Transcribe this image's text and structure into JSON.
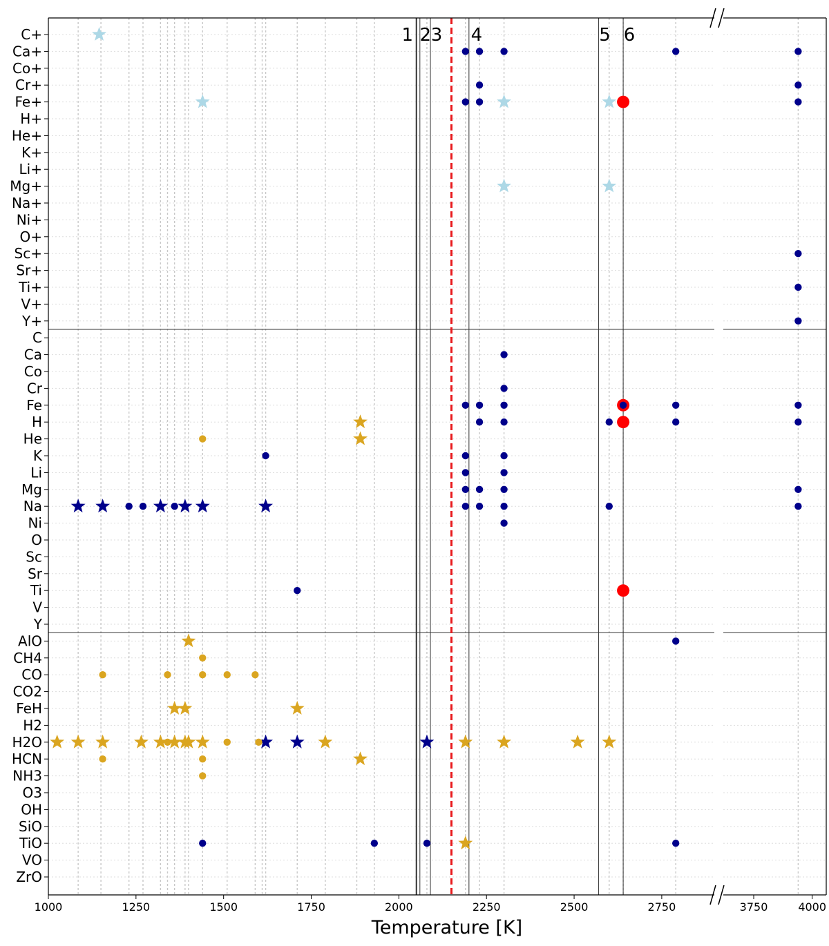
{
  "chart_data": {
    "type": "scatter",
    "title": "",
    "xlabel": "Temperature [K]",
    "ylabel": "",
    "x_segments": [
      {
        "range": [
          1000,
          2900
        ],
        "ticks": [
          1000,
          1250,
          1500,
          1750,
          2000,
          2250,
          2500,
          2750
        ]
      },
      {
        "range": [
          3620,
          4060
        ],
        "ticks": [
          3750,
          4000
        ]
      }
    ],
    "categories": [
      "C+",
      "Ca+",
      "Co+",
      "Cr+",
      "Fe+",
      "H+",
      "He+",
      "K+",
      "Li+",
      "Mg+",
      "Na+",
      "Ni+",
      "O+",
      "Sc+",
      "Sr+",
      "Ti+",
      "V+",
      "Y+",
      "C",
      "Ca",
      "Co",
      "Cr",
      "Fe",
      "H",
      "He",
      "K",
      "Li",
      "Mg",
      "Na",
      "Ni",
      "O",
      "Sc",
      "Sr",
      "Ti",
      "V",
      "Y",
      "AlO",
      "CH4",
      "CO",
      "CO2",
      "FeH",
      "H2",
      "H2O",
      "HCN",
      "NH3",
      "O3",
      "OH",
      "SiO",
      "TiO",
      "VO",
      "ZrO"
    ],
    "group_separators_after": [
      "Y+",
      "Y"
    ],
    "reference_lines": [
      {
        "label": "1",
        "x": 2050
      },
      {
        "label": "2",
        "x": 2060
      },
      {
        "label": "3",
        "x": 2090
      },
      {
        "label": "4",
        "x": 2200
      },
      {
        "label": "5",
        "x": 2570
      },
      {
        "label": "6",
        "x": 2640
      }
    ],
    "threshold_line": {
      "x": 2150,
      "color": "#e8191c",
      "style": "dashed"
    },
    "grid_x_dotted": [
      1085,
      1150,
      1230,
      1270,
      1320,
      1340,
      1360,
      1390,
      1400,
      1440,
      1510,
      1590,
      1610,
      1620,
      1710,
      1790,
      1880,
      1930,
      2080,
      2190,
      2230,
      2300,
      2600,
      2640,
      2790
    ],
    "colors": {
      "dark_blue": "#00008b",
      "light_blue": "#add8e6",
      "gold": "#daa520",
      "red": "#ff0000"
    },
    "series": [
      {
        "name": "dark-blue-dots",
        "marker": "circle",
        "color": "#00008b",
        "points": [
          [
            "Ca+",
            2190
          ],
          [
            "Ca+",
            2230
          ],
          [
            "Ca+",
            2300
          ],
          [
            "Ca+",
            2790
          ],
          [
            "Ca+",
            3940
          ],
          [
            "Cr+",
            2230
          ],
          [
            "Cr+",
            3940
          ],
          [
            "Fe+",
            2190
          ],
          [
            "Fe+",
            2230
          ],
          [
            "Fe+",
            3940
          ],
          [
            "Sc+",
            3940
          ],
          [
            "Ti+",
            3940
          ],
          [
            "Y+",
            3940
          ],
          [
            "Ca",
            2300
          ],
          [
            "Cr",
            2300
          ],
          [
            "Fe",
            2190
          ],
          [
            "Fe",
            2230
          ],
          [
            "Fe",
            2300
          ],
          [
            "Fe",
            2790
          ],
          [
            "Fe",
            3940
          ],
          [
            "H",
            2230
          ],
          [
            "H",
            2300
          ],
          [
            "H",
            2600
          ],
          [
            "H",
            2790
          ],
          [
            "H",
            3940
          ],
          [
            "K",
            1620
          ],
          [
            "K",
            2190
          ],
          [
            "K",
            2300
          ],
          [
            "Li",
            2190
          ],
          [
            "Li",
            2300
          ],
          [
            "Mg",
            2190
          ],
          [
            "Mg",
            2230
          ],
          [
            "Mg",
            2300
          ],
          [
            "Mg",
            3940
          ],
          [
            "Na",
            1230
          ],
          [
            "Na",
            1270
          ],
          [
            "Na",
            1360
          ],
          [
            "Na",
            2190
          ],
          [
            "Na",
            2230
          ],
          [
            "Na",
            2300
          ],
          [
            "Na",
            2600
          ],
          [
            "Na",
            3940
          ],
          [
            "Ni",
            2300
          ],
          [
            "Ti",
            1710
          ],
          [
            "AlO",
            2790
          ],
          [
            "TiO",
            1440
          ],
          [
            "TiO",
            1930
          ],
          [
            "TiO",
            2080
          ],
          [
            "TiO",
            2790
          ]
        ]
      },
      {
        "name": "dark-blue-stars",
        "marker": "star",
        "color": "#00008b",
        "points": [
          [
            "Na",
            1085
          ],
          [
            "Na",
            1155
          ],
          [
            "Na",
            1320
          ],
          [
            "Na",
            1390
          ],
          [
            "Na",
            1440
          ],
          [
            "Na",
            1620
          ],
          [
            "H2O",
            1620
          ],
          [
            "H2O",
            1710
          ],
          [
            "H2O",
            2080
          ]
        ]
      },
      {
        "name": "light-blue-stars",
        "marker": "star",
        "color": "#add8e6",
        "points": [
          [
            "C+",
            1145
          ],
          [
            "Fe+",
            1440
          ],
          [
            "Fe+",
            2300
          ],
          [
            "Fe+",
            2600
          ],
          [
            "Mg+",
            2300
          ],
          [
            "Mg+",
            2600
          ]
        ]
      },
      {
        "name": "gold-dots",
        "marker": "circle",
        "color": "#daa520",
        "points": [
          [
            "He",
            1440
          ],
          [
            "CH4",
            1440
          ],
          [
            "CO",
            1155
          ],
          [
            "CO",
            1340
          ],
          [
            "CO",
            1440
          ],
          [
            "CO",
            1510
          ],
          [
            "CO",
            1590
          ],
          [
            "H2O",
            1340
          ],
          [
            "H2O",
            1510
          ],
          [
            "H2O",
            1600
          ],
          [
            "HCN",
            1155
          ],
          [
            "HCN",
            1440
          ],
          [
            "NH3",
            1440
          ]
        ]
      },
      {
        "name": "gold-stars",
        "marker": "star",
        "color": "#daa520",
        "points": [
          [
            "H",
            1890
          ],
          [
            "He",
            1890
          ],
          [
            "AlO",
            1400
          ],
          [
            "FeH",
            1360
          ],
          [
            "FeH",
            1390
          ],
          [
            "FeH",
            1710
          ],
          [
            "H2O",
            1025
          ],
          [
            "H2O",
            1085
          ],
          [
            "H2O",
            1155
          ],
          [
            "H2O",
            1265
          ],
          [
            "H2O",
            1320
          ],
          [
            "H2O",
            1360
          ],
          [
            "H2O",
            1390
          ],
          [
            "H2O",
            1400
          ],
          [
            "H2O",
            1440
          ],
          [
            "H2O",
            1790
          ],
          [
            "H2O",
            2190
          ],
          [
            "H2O",
            2300
          ],
          [
            "H2O",
            2510
          ],
          [
            "H2O",
            2600
          ],
          [
            "HCN",
            1890
          ],
          [
            "TiO",
            2190
          ]
        ]
      },
      {
        "name": "red-large-dots",
        "marker": "circle-large",
        "color": "#ff0000",
        "points": [
          [
            "Fe+",
            2640
          ],
          [
            "Fe",
            2640
          ],
          [
            "H",
            2640
          ],
          [
            "Ti",
            2640
          ]
        ]
      },
      {
        "name": "dark-blue-dots-overlay",
        "marker": "circle",
        "color": "#00008b",
        "points": [
          [
            "Fe",
            2640
          ]
        ]
      }
    ]
  }
}
